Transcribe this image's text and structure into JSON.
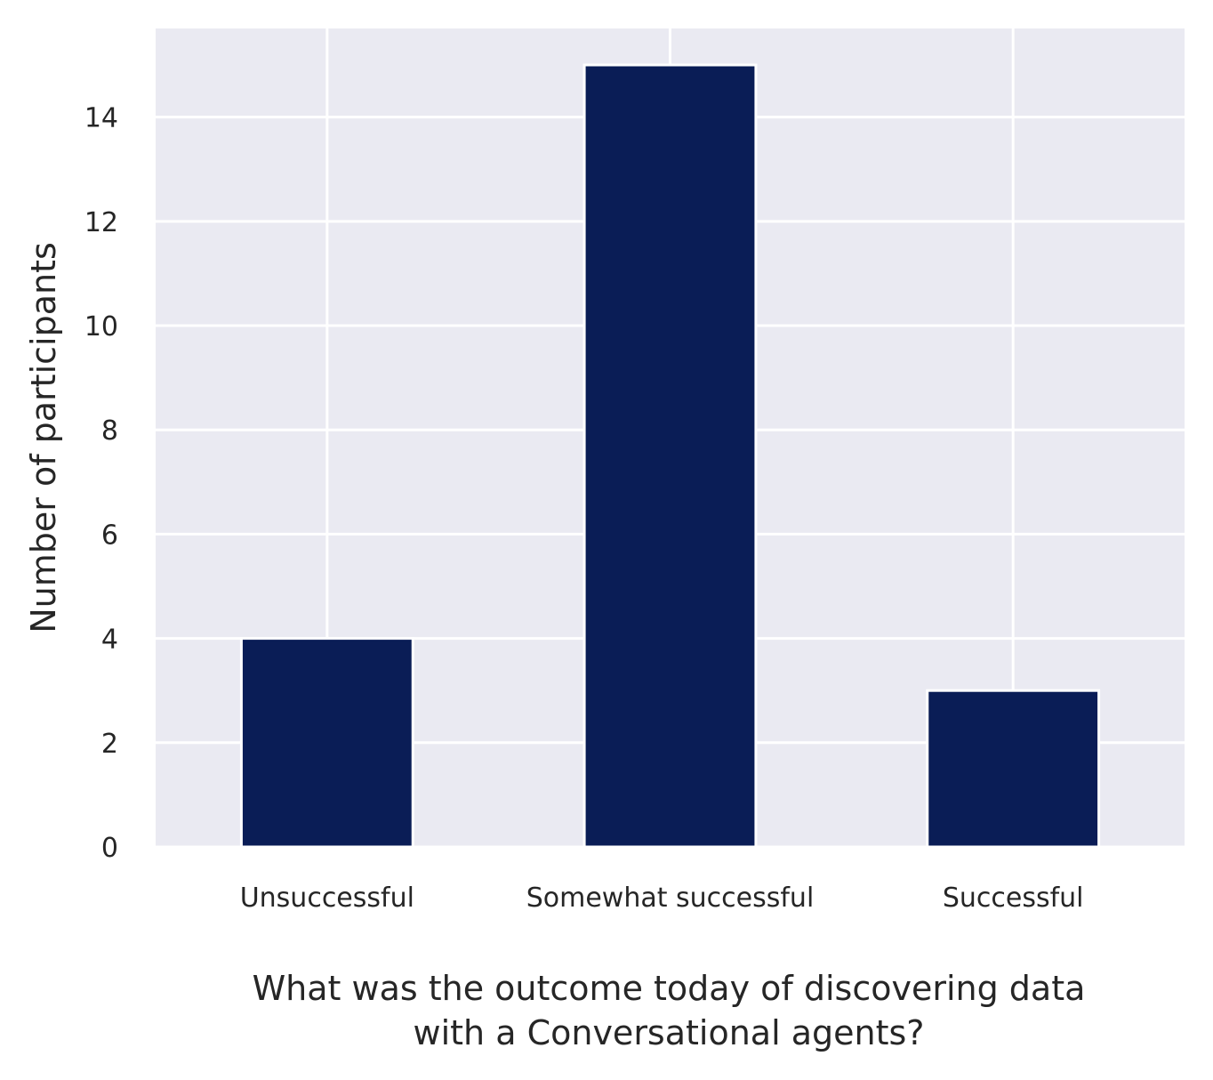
{
  "chart_data": {
    "type": "bar",
    "categories": [
      "Unsuccessful",
      "Somewhat successful",
      "Successful"
    ],
    "values": [
      4,
      15,
      3
    ],
    "title": "",
    "xlabel_lines": [
      "What was the outcome today of discovering data",
      "with a Conversational agents?"
    ],
    "ylabel": "Number of participants",
    "ylim": [
      0,
      15.7
    ],
    "yticks": [
      0,
      2,
      4,
      6,
      8,
      10,
      12,
      14
    ],
    "grid": true,
    "colors": {
      "bar": "#0a1d56",
      "plot_background": "#eaeaf2",
      "grid": "#ffffff",
      "text": "#262626"
    }
  }
}
